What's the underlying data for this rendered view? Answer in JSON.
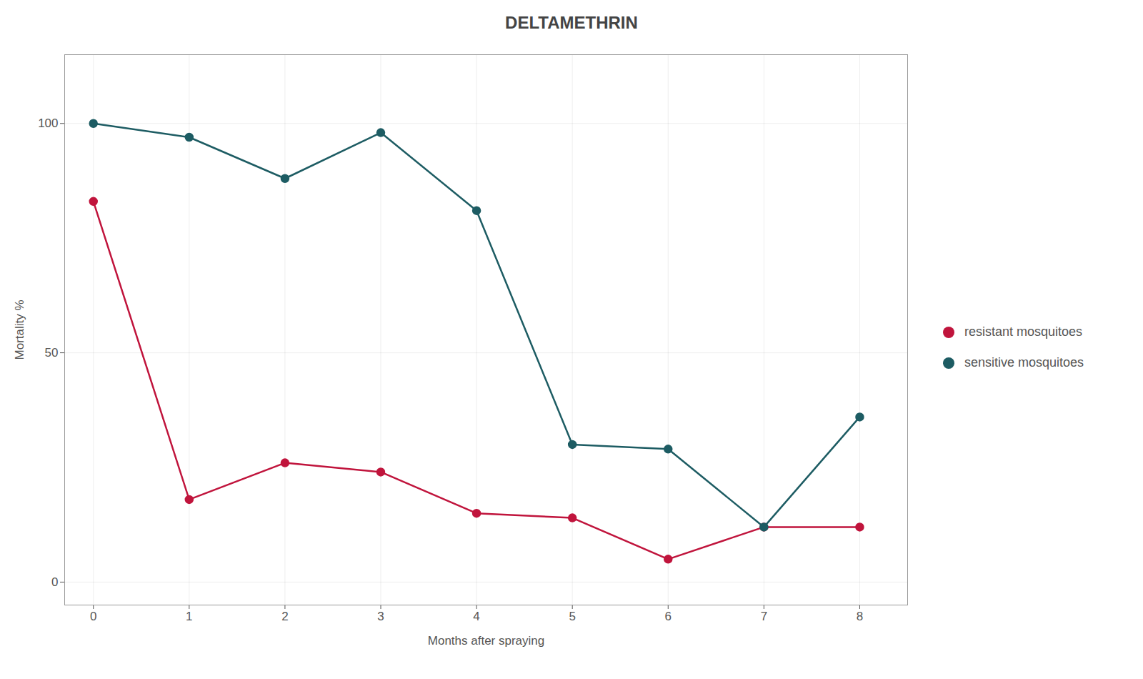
{
  "chart_data": {
    "type": "line",
    "title": "DELTAMETHRIN",
    "x_label": "Months after spraying",
    "y_label": "Mortality %",
    "x": [
      0,
      1,
      2,
      3,
      4,
      5,
      6,
      7,
      8
    ],
    "series": [
      {
        "name": "resistant mosquitoes",
        "color": "#c0143c",
        "marker": "circle",
        "values": [
          83,
          18,
          26,
          24,
          15,
          14,
          5,
          12,
          12
        ]
      },
      {
        "name": "sensitive mosquitoes",
        "color": "#1d5c63",
        "marker": "circle",
        "values": [
          100,
          97,
          88,
          98,
          81,
          30,
          29,
          12,
          36
        ]
      }
    ],
    "xlim": [
      -0.3,
      8.5
    ],
    "ylim": [
      -5,
      115
    ],
    "xticks": [
      0,
      1,
      2,
      3,
      4,
      5,
      6,
      7,
      8
    ],
    "yticks": [
      0,
      50,
      100
    ],
    "grid": true,
    "legend": "right"
  }
}
